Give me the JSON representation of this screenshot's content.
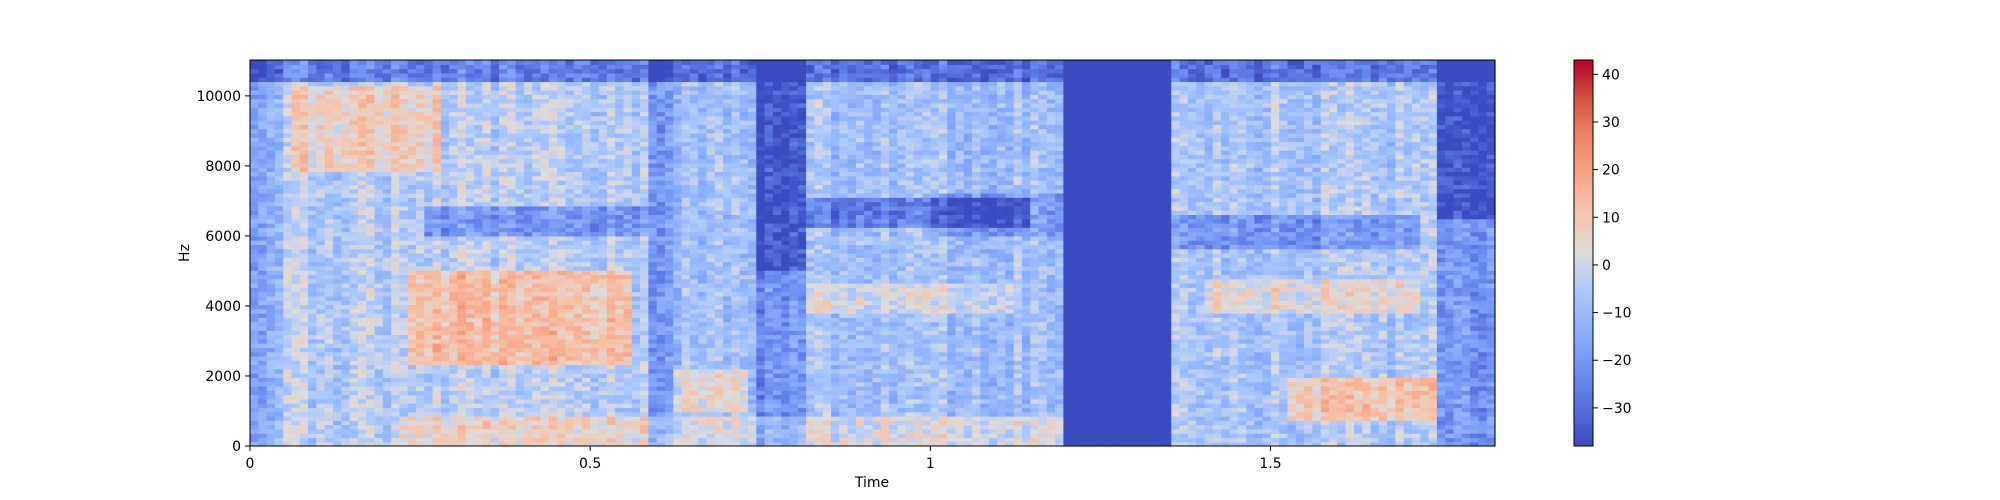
{
  "chart_data": {
    "type": "heatmap",
    "title": "",
    "xlabel": "Time",
    "ylabel": "Hz",
    "xlim": [
      0,
      1.83
    ],
    "ylim": [
      0,
      11025
    ],
    "x_ticks": [
      0,
      0.5,
      1,
      1.5
    ],
    "x_tick_labels": [
      "0",
      "0.5",
      "1",
      "1.5"
    ],
    "y_ticks": [
      0,
      2000,
      4000,
      6000,
      8000,
      10000
    ],
    "y_tick_labels": [
      "0",
      "2000",
      "4000",
      "6000",
      "8000",
      "10000"
    ],
    "colorbar": {
      "colormap": "coolwarm",
      "vmin": -38,
      "vmax": 43,
      "ticks": [
        -30,
        -20,
        -10,
        0,
        10,
        20,
        30,
        40
      ],
      "tick_labels": [
        "−30",
        "−20",
        "−10",
        "0",
        "10",
        "20",
        "30",
        "40"
      ]
    },
    "grid": false,
    "legend": "none",
    "segments": [
      {
        "t_start": 0.0,
        "t_end": 0.05,
        "level": -14
      },
      {
        "t_start": 0.05,
        "t_end": 0.28,
        "level": -4
      },
      {
        "t_start": 0.28,
        "t_end": 0.58,
        "level": -4
      },
      {
        "t_start": 0.58,
        "t_end": 0.62,
        "level": -22
      },
      {
        "t_start": 0.62,
        "t_end": 0.74,
        "level": -8
      },
      {
        "t_start": 0.74,
        "t_end": 0.82,
        "level": -22
      },
      {
        "t_start": 0.82,
        "t_end": 1.2,
        "level": -8
      },
      {
        "t_start": 1.2,
        "t_end": 1.35,
        "level": -38
      },
      {
        "t_start": 1.35,
        "t_end": 1.74,
        "level": -6
      },
      {
        "t_start": 1.74,
        "t_end": 1.83,
        "level": -20
      }
    ]
  }
}
